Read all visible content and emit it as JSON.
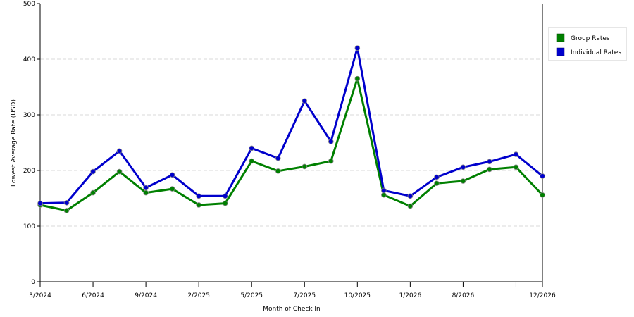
{
  "chart_data": {
    "type": "line",
    "title": "",
    "xlabel": "Month of Check In",
    "ylabel": "Lowest Average Rate (USD)",
    "ylim": [
      0,
      500
    ],
    "yticks": [
      "0",
      "100",
      "200",
      "300",
      "400",
      "500"
    ],
    "grid": "horizontal dashed",
    "legend_position": "right",
    "x_tick_labels": [
      "3/2024",
      "6/2024",
      "9/2024",
      "2/2025",
      "5/2025",
      "7/2025",
      "10/2025",
      "1/2026",
      "8/2026",
      "",
      "12/2026"
    ],
    "x_tick_positions": [
      0,
      2,
      4,
      6,
      8,
      10,
      12,
      14,
      16,
      18,
      19
    ],
    "series": [
      {
        "name": "Group Rates",
        "color": "#008000",
        "values": [
          138,
          128,
          160,
          198,
          160,
          167,
          138,
          141,
          217,
          199,
          207,
          217,
          365,
          156,
          136,
          177,
          181,
          202,
          206,
          156
        ]
      },
      {
        "name": "Individual Rates",
        "color": "#0000CC",
        "values": [
          141,
          142,
          198,
          235,
          169,
          192,
          154,
          154,
          240,
          222,
          325,
          252,
          420,
          164,
          154,
          188,
          206,
          216,
          229,
          190
        ]
      }
    ]
  }
}
